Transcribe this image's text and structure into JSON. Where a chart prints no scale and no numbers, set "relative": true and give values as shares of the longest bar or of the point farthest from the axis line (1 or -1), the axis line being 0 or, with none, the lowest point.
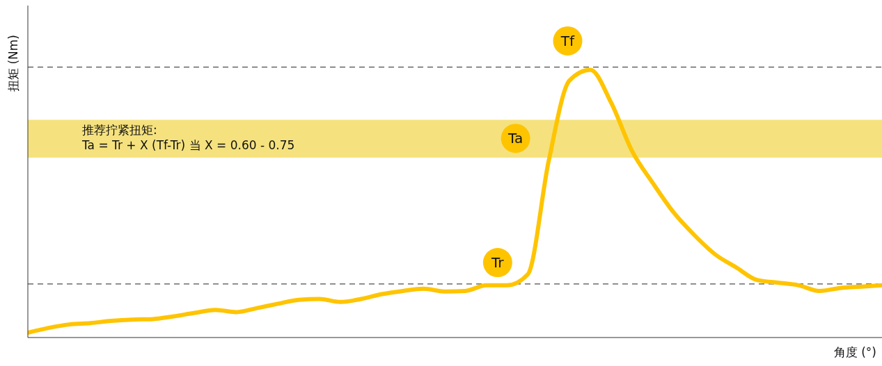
{
  "chart_data": {
    "type": "line",
    "relative": true,
    "xlabel": "角度 (°)",
    "ylabel": "扭矩 (Nm)",
    "categories": [
      null,
      null,
      null,
      null,
      null,
      null,
      null,
      null,
      null,
      null,
      null,
      null,
      null,
      null,
      null,
      null,
      null,
      null,
      null,
      null,
      null,
      null,
      null,
      null,
      null,
      null,
      null,
      null,
      null,
      null,
      null,
      null,
      null,
      null,
      null,
      null,
      null,
      null,
      null,
      null,
      null,
      null
    ],
    "series": [
      {
        "color": "#ffc400",
        "values": [
          0.018,
          0.036,
          0.049,
          0.054,
          0.062,
          0.067,
          0.069,
          0.079,
          0.092,
          0.103,
          0.095,
          0.11,
          0.126,
          0.141,
          0.144,
          0.133,
          0.144,
          0.162,
          0.174,
          0.182,
          0.172,
          0.174,
          0.195,
          0.195,
          0.236,
          0.659,
          0.96,
          1,
          0.877,
          0.697,
          0.577,
          0.467,
          0.382,
          0.31,
          0.262,
          0.215,
          0.205,
          0.195,
          0.174,
          0.185,
          0.19,
          0.195
        ]
      }
    ],
    "ref_lines": [
      {
        "axis": "y",
        "value": 1.01,
        "color": "#222222",
        "line_style": "dashed"
      },
      {
        "axis": "y",
        "value": 0.2,
        "color": "#222222",
        "line_style": "dashed"
      }
    ],
    "bands": [
      {
        "axis": "y",
        "from": 0.672,
        "to": 0.813,
        "color": "#f5e27e",
        "label": "推荐拧紧扭矩:\nTa = Tr + X (Tf-Tr) 当 X = 0.60 - 0.75"
      }
    ],
    "annotations": [
      "Tr",
      "Tf",
      "Ta"
    ],
    "grid": false,
    "legend": false,
    "marker": "none",
    "line_style": "solid"
  }
}
